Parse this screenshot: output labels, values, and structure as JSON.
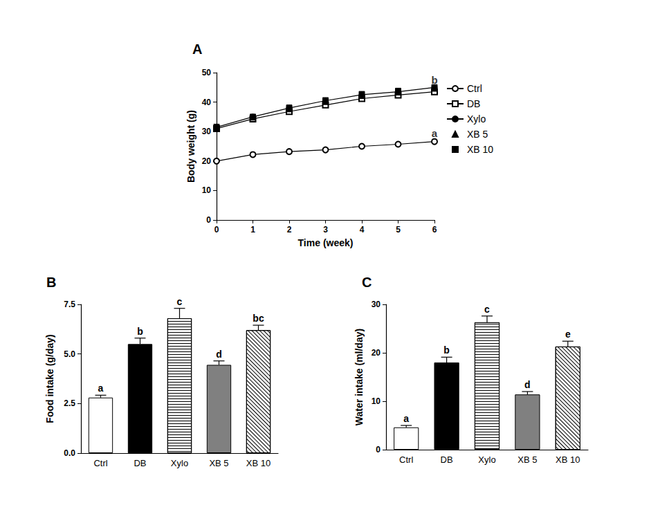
{
  "chart_data": [
    {
      "type": "line",
      "title": "A",
      "xlabel": "Time (week)",
      "ylabel": "Body weight (g)",
      "x": [
        0,
        1,
        2,
        3,
        4,
        5,
        6
      ],
      "xlim": [
        0,
        6
      ],
      "xticks": [
        0,
        1,
        2,
        3,
        4,
        5,
        6
      ],
      "ylim": [
        0,
        50
      ],
      "yticks": [
        0,
        10,
        20,
        30,
        40,
        50
      ],
      "grid": false,
      "legend": "right",
      "series": [
        {
          "name": "Ctrl",
          "color": "#000000",
          "marker": "open_circle",
          "line_style": "solid",
          "values": [
            20,
            22.2,
            23.2,
            23.8,
            25,
            25.7,
            26.6
          ]
        },
        {
          "name": "DB",
          "color": "#000000",
          "marker": "open_square",
          "line_style": "solid",
          "values": [
            31,
            34.3,
            36.8,
            39,
            41.2,
            42.4,
            43.5
          ]
        },
        {
          "name": "Xylo",
          "color": "#000000",
          "marker": "circle",
          "line_style": "solid",
          "values": [
            31.5,
            35,
            38,
            40.5,
            42.5,
            43.5,
            45
          ]
        },
        {
          "name": "XB 5",
          "color": "#000000",
          "marker": "triangle",
          "line_style": "none",
          "values": [
            31.2,
            34.8,
            37.6,
            40.1,
            42.1,
            43.3,
            44.6
          ]
        },
        {
          "name": "XB 10",
          "color": "#000000",
          "marker": "square",
          "line_style": "none",
          "values": [
            31.6,
            35,
            38.1,
            40.6,
            42.7,
            43.8,
            45
          ]
        }
      ],
      "annotations": [
        {
          "x": 6,
          "y": 47.5,
          "text": "b"
        },
        {
          "x": 6,
          "y": 29.5,
          "text": "a"
        }
      ]
    },
    {
      "type": "bar",
      "title": "B",
      "ylabel": "Food intake (g/day)",
      "categories": [
        "Ctrl",
        "DB",
        "Xylo",
        "XB 5",
        "XB 10"
      ],
      "values": [
        2.8,
        5.5,
        6.8,
        4.45,
        6.2
      ],
      "errors": [
        0.12,
        0.3,
        0.5,
        0.2,
        0.25
      ],
      "letters": [
        "a",
        "b",
        "c",
        "d",
        "bc"
      ],
      "colors": [
        "#ffffff",
        "#000000",
        "#ffffff",
        "#808080",
        "#ffffff"
      ],
      "ylim": [
        0,
        7.5
      ],
      "yticks": [
        {
          "value": 0,
          "label": "0.0"
        },
        2.5,
        {
          "value": 5,
          "label": "5.0"
        },
        7.5
      ],
      "grid": false
    },
    {
      "type": "bar",
      "title": "C",
      "ylabel": "Water intake (ml/day)",
      "categories": [
        "Ctrl",
        "DB",
        "Xylo",
        "XB 5",
        "XB 10"
      ],
      "values": [
        4.6,
        18,
        26.3,
        11.4,
        21.3
      ],
      "errors": [
        0.4,
        1.1,
        1.3,
        0.6,
        1.1
      ],
      "letters": [
        "a",
        "b",
        "c",
        "d",
        "e"
      ],
      "colors": [
        "#ffffff",
        "#000000",
        "#ffffff",
        "#808080",
        "#ffffff"
      ],
      "ylim": [
        0,
        30
      ],
      "yticks": [
        0,
        10,
        20,
        30
      ],
      "grid": false
    }
  ]
}
